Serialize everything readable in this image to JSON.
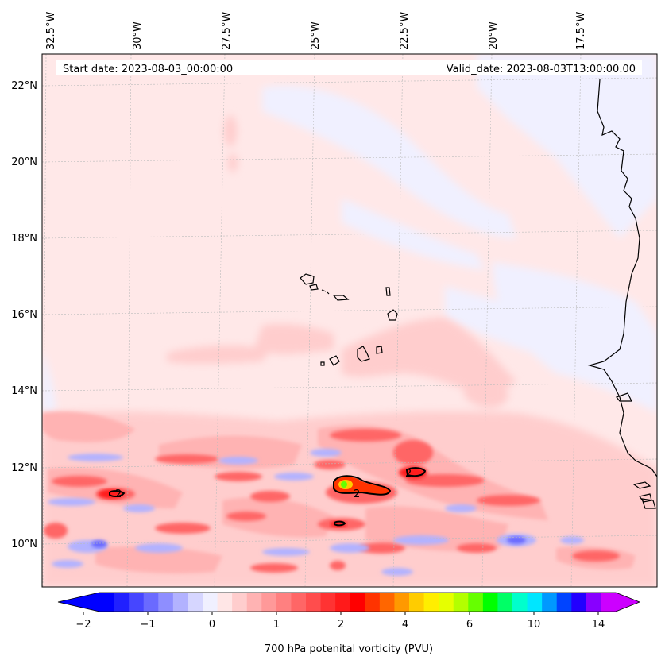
{
  "header": {
    "start_date": "Start date: 2023-08-03_00:00:00",
    "valid_date": "Valid_date: 2023-08-03T13:00:00.00"
  },
  "longitude_labels": [
    "32.5°W",
    "30°W",
    "27.5°W",
    "25°W",
    "22.5°W",
    "20°W",
    "17.5°W"
  ],
  "latitude_labels": [
    "22°N",
    "20°N",
    "18°N",
    "16°N",
    "14°N",
    "12°N",
    "10°N"
  ],
  "contour_labels": [
    "2",
    "2",
    "2"
  ],
  "colorbar": {
    "title": "700 hPa potenital vorticity (PVU)",
    "tick_labels": [
      "−2",
      "−1",
      "0",
      "1",
      "2",
      "4",
      "6",
      "10",
      "14"
    ],
    "colors": [
      "#0000ff",
      "#2020ff",
      "#4646ff",
      "#6a6aff",
      "#8e8eff",
      "#b2b2ff",
      "#d6d6ff",
      "#f0f0ff",
      "#ffe6e6",
      "#ffcdcd",
      "#ffb3b3",
      "#ff9999",
      "#ff8080",
      "#ff6666",
      "#ff4d4d",
      "#ff3333",
      "#ff1a1a",
      "#ff0000",
      "#ff3300",
      "#ff6600",
      "#ff9900",
      "#ffcc00",
      "#ffee00",
      "#e6ff00",
      "#b3ff00",
      "#66ff00",
      "#00ff00",
      "#00ff66",
      "#00ffcc",
      "#00e6ff",
      "#0099ff",
      "#0044ff",
      "#2200ff",
      "#8800ff",
      "#cc00ff"
    ],
    "extend_low_color": "#0000ff",
    "extend_high_color": "#cc00ff"
  },
  "colors": {
    "background_field": "#ffe8e8",
    "coastline": "#000000"
  }
}
